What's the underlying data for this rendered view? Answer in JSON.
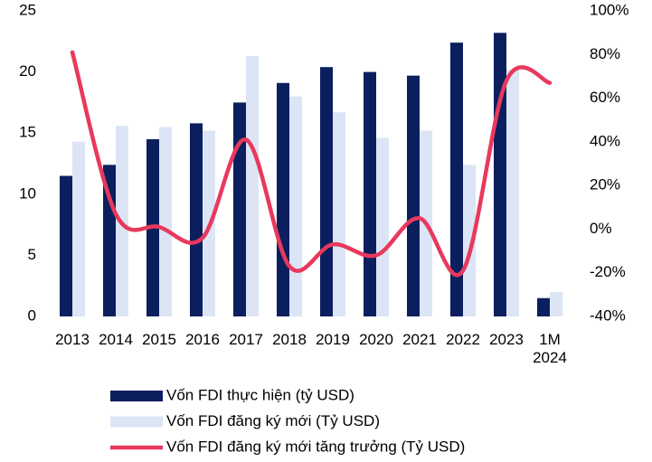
{
  "chart_data": {
    "type": "bar-line",
    "categories": [
      "2013",
      "2014",
      "2015",
      "2016",
      "2017",
      "2018",
      "2019",
      "2020",
      "2021",
      "2022",
      "2023",
      "1M 2024"
    ],
    "series": [
      {
        "name": "Vốn FDI thực hiện (tỷ USD)",
        "color": "#0b1f5e",
        "type": "bar",
        "values": [
          11.5,
          12.4,
          14.5,
          15.8,
          17.5,
          19.1,
          20.4,
          20.0,
          19.7,
          22.4,
          23.2,
          1.5
        ]
      },
      {
        "name": "Vốn FDI đăng ký mới (Tỷ USD)",
        "color": "#dbe5f5",
        "type": "bar",
        "values": [
          14.3,
          15.6,
          15.5,
          15.2,
          21.3,
          18.0,
          16.7,
          14.6,
          15.2,
          12.4,
          20.2,
          2.0
        ]
      },
      {
        "name": "Vốn FDI đăng ký mới tăng trưởng (Tỷ USD)",
        "color": "#e8395c",
        "type": "line",
        "axis": "y2",
        "values": [
          81,
          7,
          1,
          -4,
          41,
          -17,
          -7,
          -12,
          5,
          -19,
          68,
          67
        ]
      }
    ],
    "ylim": [
      0,
      25
    ],
    "yticks": [
      0,
      5,
      10,
      15,
      20,
      25
    ],
    "y2lim": [
      -40,
      100
    ],
    "y2ticks": [
      {
        "value": -40,
        "label": "-40%"
      },
      {
        "value": -20,
        "label": "-20%"
      },
      {
        "value": 0,
        "label": "0%"
      },
      {
        "value": 20,
        "label": "20%"
      },
      {
        "value": 40,
        "label": "40%"
      },
      {
        "value": 60,
        "label": "60%"
      },
      {
        "value": 80,
        "label": "80%"
      },
      {
        "value": 100,
        "label": "100%"
      }
    ]
  }
}
